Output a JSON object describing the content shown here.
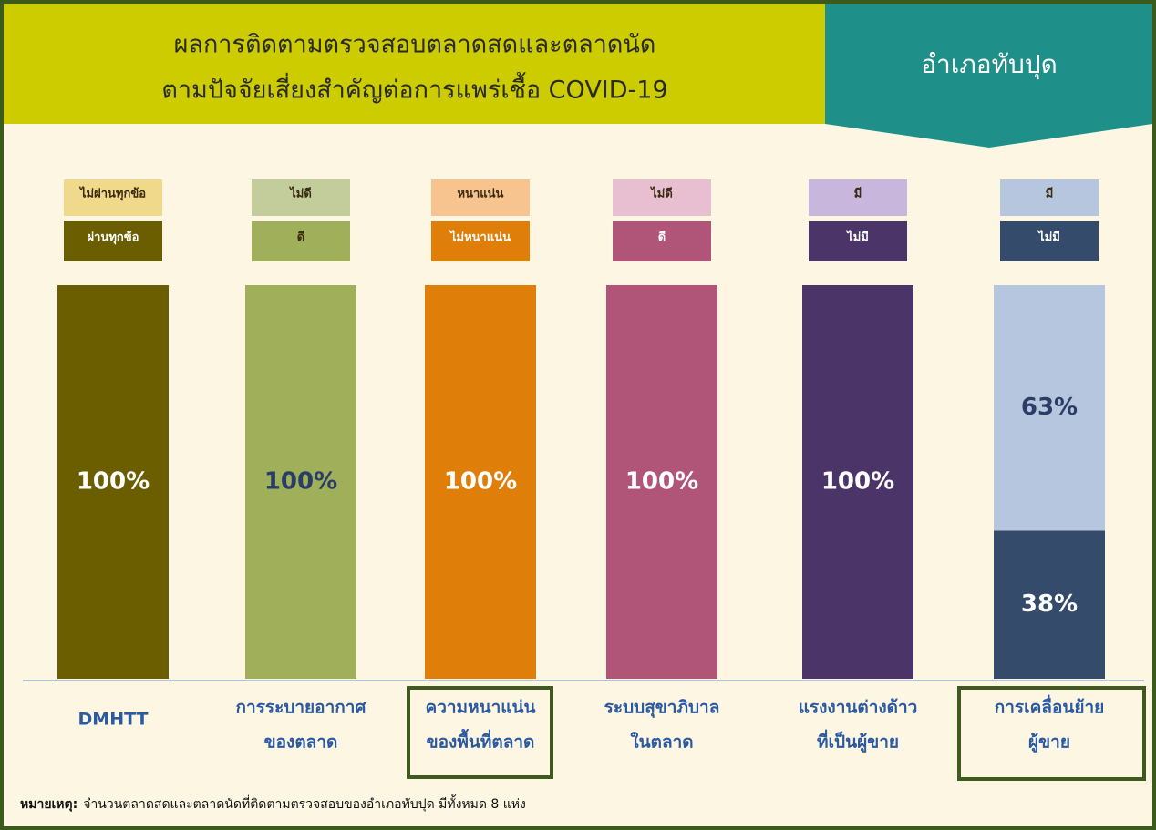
{
  "chart_data": {
    "type": "stacked_bar",
    "title_lines": [
      "ผลการติดตามตรวจสอบตลาดสดและตลาดนัด",
      "ตามปัจจัยเสี่ยงสำคัญต่อการแพร่เชื้อ COVID-19"
    ],
    "district": "อำเภอทับปุด",
    "bars": [
      {
        "category": [
          "DMHTT"
        ],
        "segments": [
          {
            "name": "ผ่านทุกข้อ",
            "color": "#6b5e00",
            "value": 100,
            "value_label": "100%"
          },
          {
            "name": "ไม่ผ่านทุกข้อ",
            "color": "#f0d98a",
            "value": 0
          }
        ]
      },
      {
        "category": [
          "การระบายอากาศ",
          "ของตลาด"
        ],
        "segments": [
          {
            "name": "ดี",
            "color": "#9faf5a",
            "value": 100,
            "value_label": "100%"
          },
          {
            "name": "ไม่ดี",
            "color": "#c3cc9b",
            "value": 0
          }
        ]
      },
      {
        "category": [
          "ความหนาแน่น",
          "ของพื้นที่ตลาด"
        ],
        "segments": [
          {
            "name": "ไม่หนาแน่น",
            "color": "#df7f0a",
            "value": 100,
            "value_label": "100%"
          },
          {
            "name": "หนาแน่น",
            "color": "#f7c38f",
            "value": 0
          }
        ]
      },
      {
        "category": [
          "ระบบสุขาภิบาล",
          "ในตลาด"
        ],
        "segments": [
          {
            "name": "ดี",
            "color": "#b05577",
            "value": 100,
            "value_label": "100%"
          },
          {
            "name": "ไม่ดี",
            "color": "#e8bfd0",
            "value": 0
          }
        ]
      },
      {
        "category": [
          "แรงงานต่างด้าว",
          "ที่เป็นผู้ขาย"
        ],
        "segments": [
          {
            "name": "ไม่มี",
            "color": "#4b3568",
            "value": 100,
            "value_label": "100%"
          },
          {
            "name": "มี",
            "color": "#c9b6dc",
            "value": 0
          }
        ]
      },
      {
        "category": [
          "การเคลื่อนย้าย",
          "ผู้ขาย"
        ],
        "segments": [
          {
            "name": "ไม่มี",
            "color": "#344b6b",
            "value": 38,
            "value_label": "38%"
          },
          {
            "name": "มี",
            "color": "#b6c6de",
            "value": 63,
            "value_label": "63%"
          }
        ]
      }
    ],
    "note_label": "หมายเหตุ:",
    "note_text": "จำนวนตลาดสดและตลาดนัดที่ติดตามตรวจสอบของอำเภอทับปุด  มีทั้งหมด 8 แห่ง"
  }
}
